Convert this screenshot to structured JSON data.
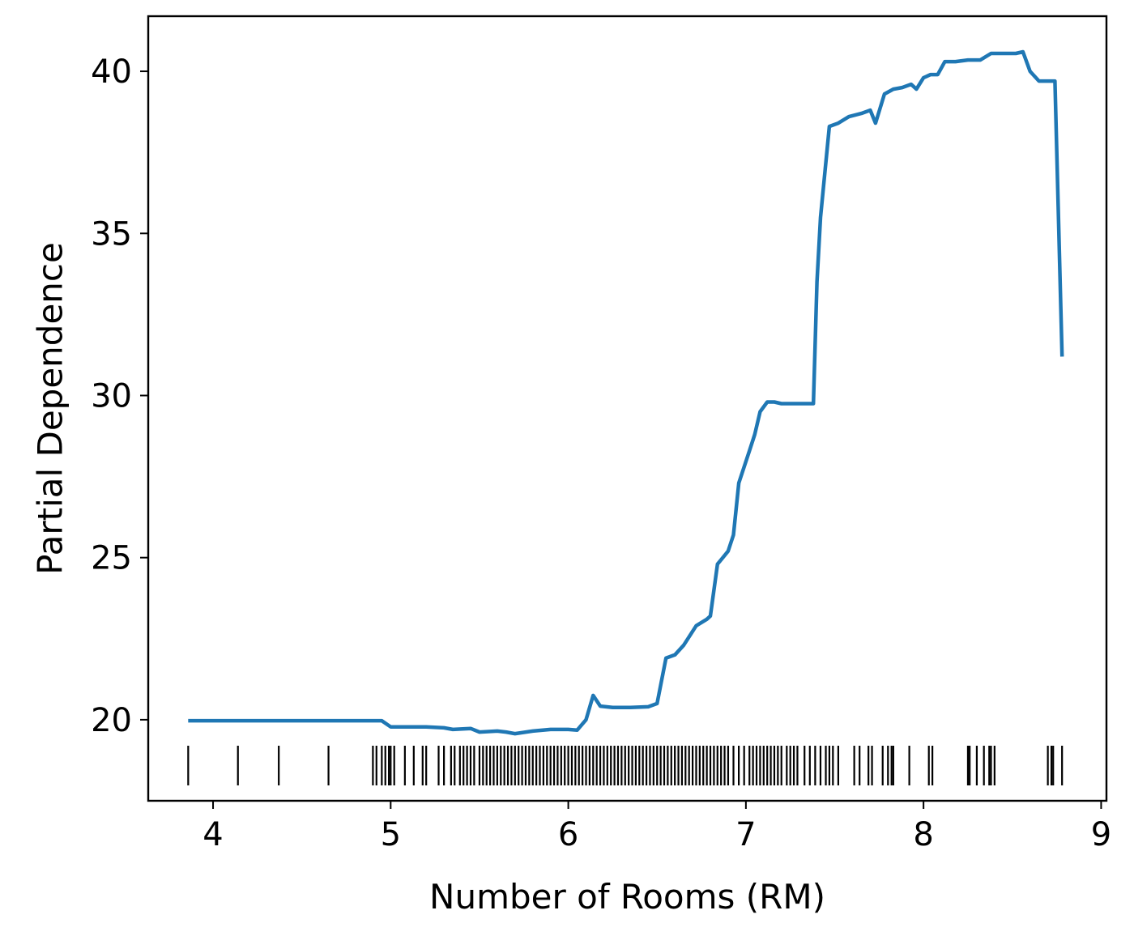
{
  "chart_data": {
    "type": "line",
    "xlabel": "Number of Rooms (RM)",
    "ylabel": "Partial Dependence",
    "xlim": [
      3.635,
      9.03
    ],
    "ylim": [
      17.5,
      41.7
    ],
    "xticks": [
      4,
      5,
      6,
      7,
      8,
      9
    ],
    "yticks": [
      20,
      25,
      30,
      35,
      40
    ],
    "grid": false,
    "legend": "none",
    "line_color": "#1f77b4",
    "rug_color": "#000000",
    "series": [
      {
        "x": [
          3.86,
          4.0,
          4.2,
          4.4,
          4.6,
          4.8,
          4.95,
          5.0,
          5.1,
          5.2,
          5.3,
          5.35,
          5.45,
          5.5,
          5.6,
          5.65,
          5.7,
          5.8,
          5.9,
          6.0,
          6.05,
          6.1,
          6.14,
          6.18,
          6.25,
          6.35,
          6.45,
          6.5,
          6.55,
          6.6,
          6.65,
          6.72,
          6.78,
          6.8,
          6.84,
          6.87,
          6.9,
          6.93,
          6.96,
          6.99,
          7.02,
          7.05,
          7.08,
          7.12,
          7.16,
          7.2,
          7.26,
          7.32,
          7.38,
          7.4,
          7.42,
          7.47,
          7.52,
          7.58,
          7.65,
          7.7,
          7.73,
          7.78,
          7.83,
          7.88,
          7.93,
          7.96,
          8.0,
          8.04,
          8.08,
          8.12,
          8.18,
          8.25,
          8.32,
          8.38,
          8.45,
          8.52,
          8.56,
          8.6,
          8.65,
          8.7,
          8.74,
          8.78
        ],
        "y": [
          19.97,
          19.97,
          19.97,
          19.97,
          19.97,
          19.97,
          19.97,
          19.78,
          19.78,
          19.78,
          19.75,
          19.7,
          19.73,
          19.62,
          19.65,
          19.62,
          19.57,
          19.65,
          19.7,
          19.7,
          19.68,
          20.0,
          20.75,
          20.42,
          20.38,
          20.38,
          20.4,
          20.5,
          21.9,
          22.0,
          22.3,
          22.9,
          23.1,
          23.2,
          24.8,
          25.0,
          25.2,
          25.7,
          27.3,
          27.8,
          28.3,
          28.8,
          29.5,
          29.8,
          29.8,
          29.75,
          29.75,
          29.75,
          29.75,
          33.5,
          35.5,
          38.3,
          38.4,
          38.6,
          38.7,
          38.8,
          38.4,
          39.3,
          39.45,
          39.5,
          39.6,
          39.45,
          39.8,
          39.9,
          39.9,
          40.3,
          40.3,
          40.35,
          40.35,
          40.55,
          40.55,
          40.55,
          40.6,
          40.0,
          39.7,
          39.7,
          39.7,
          31.2
        ]
      }
    ],
    "rug_x": [
      3.86,
      4.14,
      4.37,
      4.65,
      4.9,
      4.92,
      4.95,
      4.97,
      4.99,
      5.0,
      5.02,
      5.08,
      5.13,
      5.18,
      5.2,
      5.27,
      5.3,
      5.34,
      5.36,
      5.39,
      5.41,
      5.43,
      5.45,
      5.47,
      5.5,
      5.52,
      5.54,
      5.56,
      5.58,
      5.6,
      5.62,
      5.64,
      5.66,
      5.68,
      5.7,
      5.72,
      5.74,
      5.76,
      5.78,
      5.8,
      5.82,
      5.84,
      5.86,
      5.88,
      5.9,
      5.92,
      5.94,
      5.96,
      5.98,
      6.0,
      6.02,
      6.04,
      6.06,
      6.08,
      6.1,
      6.12,
      6.14,
      6.16,
      6.18,
      6.2,
      6.22,
      6.24,
      6.26,
      6.28,
      6.3,
      6.32,
      6.34,
      6.36,
      6.38,
      6.4,
      6.42,
      6.44,
      6.46,
      6.48,
      6.5,
      6.52,
      6.54,
      6.56,
      6.58,
      6.6,
      6.62,
      6.64,
      6.66,
      6.68,
      6.7,
      6.72,
      6.74,
      6.76,
      6.78,
      6.8,
      6.82,
      6.84,
      6.86,
      6.88,
      6.9,
      6.93,
      6.96,
      6.99,
      7.02,
      7.04,
      7.06,
      7.08,
      7.1,
      7.12,
      7.14,
      7.16,
      7.18,
      7.2,
      7.23,
      7.25,
      7.27,
      7.29,
      7.33,
      7.36,
      7.39,
      7.42,
      7.45,
      7.47,
      7.49,
      7.52,
      7.61,
      7.64,
      7.69,
      7.71,
      7.77,
      7.8,
      7.82,
      7.83,
      7.92,
      8.03,
      8.05,
      8.25,
      8.26,
      8.3,
      8.34,
      8.37,
      8.38,
      8.4,
      8.7,
      8.72,
      8.73,
      8.78
    ]
  }
}
